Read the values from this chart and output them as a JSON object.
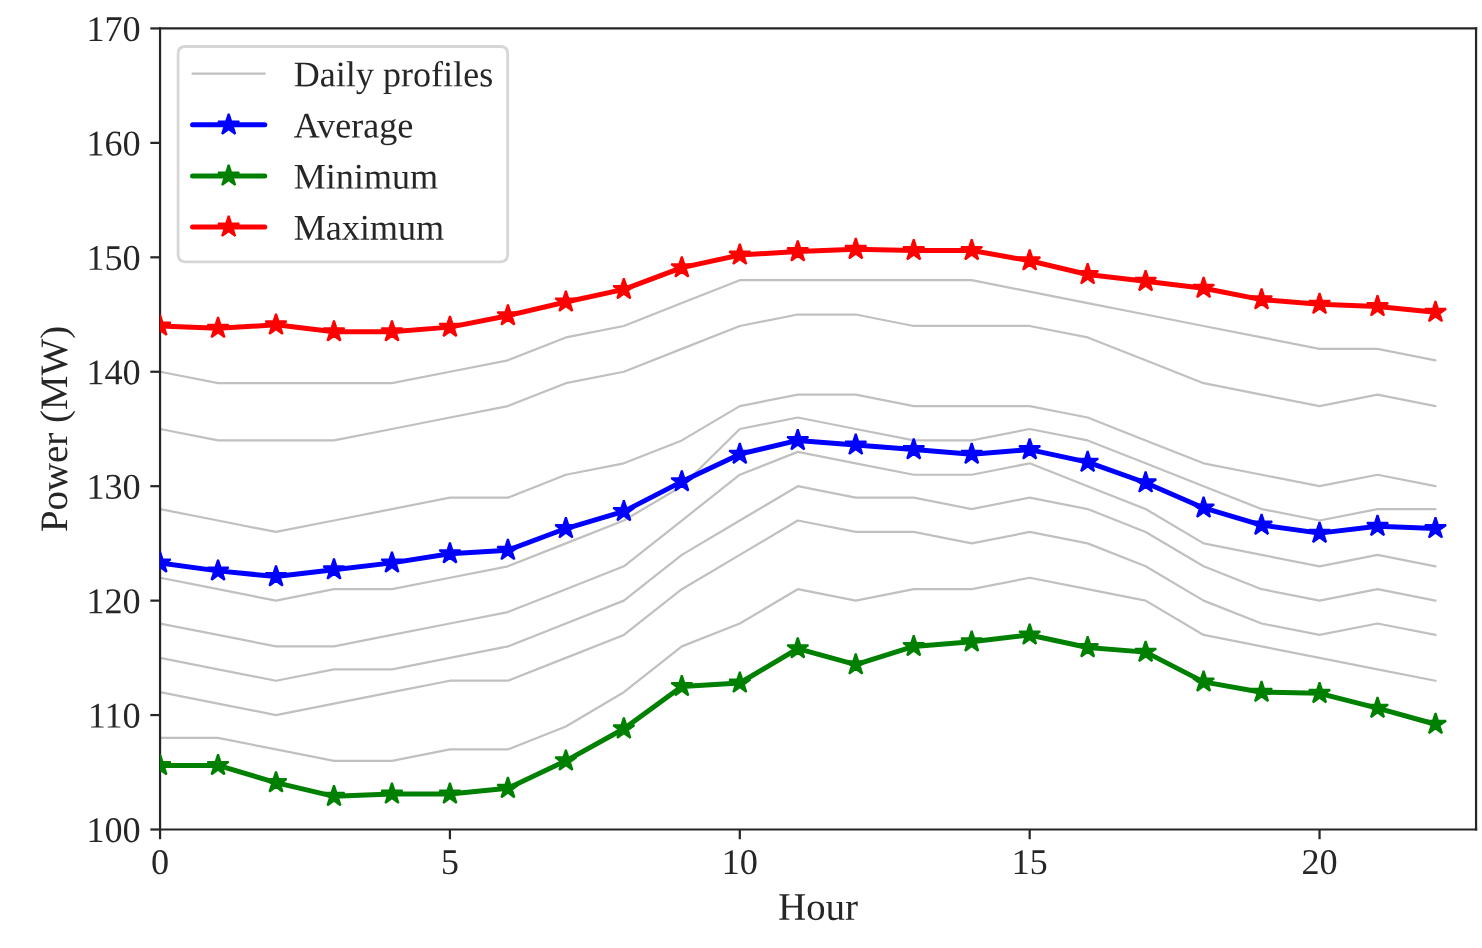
{
  "chart_data": {
    "type": "line",
    "xlabel": "Hour",
    "ylabel": "Power (MW)",
    "x": [
      0,
      1,
      2,
      3,
      4,
      5,
      6,
      7,
      8,
      9,
      10,
      11,
      12,
      13,
      14,
      15,
      16,
      17,
      18,
      19,
      20,
      21,
      22
    ],
    "xlim": [
      0,
      22.7
    ],
    "ylim": [
      100,
      170
    ],
    "xticks": [
      0,
      5,
      10,
      15,
      20
    ],
    "yticks": [
      100,
      110,
      120,
      130,
      140,
      150,
      160,
      170
    ],
    "grid": false,
    "legend": "top left",
    "line_style": "solid",
    "series": [
      {
        "name": "Daily profiles",
        "color": "#c0c0c0",
        "marker": "none",
        "values": [
          112,
          111,
          110,
          111,
          112,
          113,
          113,
          115,
          117,
          121,
          124,
          127,
          126,
          126,
          125,
          126,
          125,
          123,
          120,
          118,
          117,
          118,
          117
        ]
      },
      {
        "name": null,
        "color": "#c0c0c0",
        "marker": "none",
        "values": [
          118,
          117,
          116,
          116,
          117,
          118,
          119,
          121,
          123,
          127,
          131,
          133,
          132,
          131,
          131,
          132,
          130,
          128,
          125,
          124,
          123,
          124,
          123
        ]
      },
      {
        "name": null,
        "color": "#c0c0c0",
        "marker": "none",
        "values": [
          128,
          127,
          126,
          127,
          128,
          129,
          129,
          131,
          132,
          134,
          137,
          138,
          138,
          137,
          137,
          137,
          136,
          134,
          132,
          131,
          130,
          131,
          130
        ]
      },
      {
        "name": null,
        "color": "#c0c0c0",
        "marker": "none",
        "values": [
          135,
          134,
          134,
          134,
          135,
          136,
          137,
          139,
          140,
          142,
          144,
          145,
          145,
          144,
          144,
          144,
          143,
          141,
          139,
          138,
          137,
          138,
          137
        ]
      },
      {
        "name": null,
        "color": "#c0c0c0",
        "marker": "none",
        "values": [
          108,
          108,
          107,
          106,
          106,
          107,
          107,
          109,
          112,
          116,
          118,
          121,
          120,
          121,
          121,
          122,
          121,
          120,
          117,
          116,
          115,
          114,
          113
        ]
      },
      {
        "name": null,
        "color": "#c0c0c0",
        "marker": "none",
        "values": [
          122,
          121,
          120,
          121,
          121,
          122,
          123,
          125,
          127,
          130,
          135,
          136,
          135,
          134,
          134,
          135,
          134,
          132,
          130,
          128,
          127,
          128,
          128
        ]
      },
      {
        "name": null,
        "color": "#c0c0c0",
        "marker": "none",
        "values": [
          140,
          139,
          139,
          139,
          139,
          140,
          141,
          143,
          144,
          146,
          148,
          148,
          148,
          148,
          148,
          147,
          146,
          145,
          144,
          143,
          142,
          142,
          141
        ]
      },
      {
        "name": null,
        "color": "#c0c0c0",
        "marker": "none",
        "values": [
          115,
          114,
          113,
          114,
          114,
          115,
          116,
          118,
          120,
          124,
          127,
          130,
          129,
          129,
          128,
          129,
          128,
          126,
          123,
          121,
          120,
          121,
          120
        ]
      },
      {
        "name": "Average",
        "color": "#0000ff",
        "marker": "star",
        "values": [
          123.3,
          122.6,
          122.1,
          122.7,
          123.3,
          124.1,
          124.4,
          126.3,
          127.8,
          130.4,
          132.8,
          134.0,
          133.6,
          133.2,
          132.8,
          133.2,
          132.1,
          130.3,
          128.1,
          126.6,
          125.9,
          126.5,
          126.3
        ]
      },
      {
        "name": "Minimum",
        "color": "#008000",
        "marker": "star",
        "values": [
          105.6,
          105.6,
          104.1,
          102.9,
          103.1,
          103.1,
          103.6,
          106.0,
          108.8,
          112.5,
          112.8,
          115.8,
          114.4,
          116.0,
          116.4,
          117.0,
          115.9,
          115.5,
          112.9,
          112.0,
          111.9,
          110.6,
          109.2
        ]
      },
      {
        "name": "Maximum",
        "color": "#ff0000",
        "marker": "star",
        "values": [
          144.0,
          143.8,
          144.1,
          143.5,
          143.5,
          143.9,
          144.9,
          146.1,
          147.2,
          149.1,
          150.2,
          150.5,
          150.7,
          150.6,
          150.6,
          149.7,
          148.5,
          147.9,
          147.3,
          146.3,
          145.9,
          145.7,
          145.2
        ]
      }
    ]
  }
}
